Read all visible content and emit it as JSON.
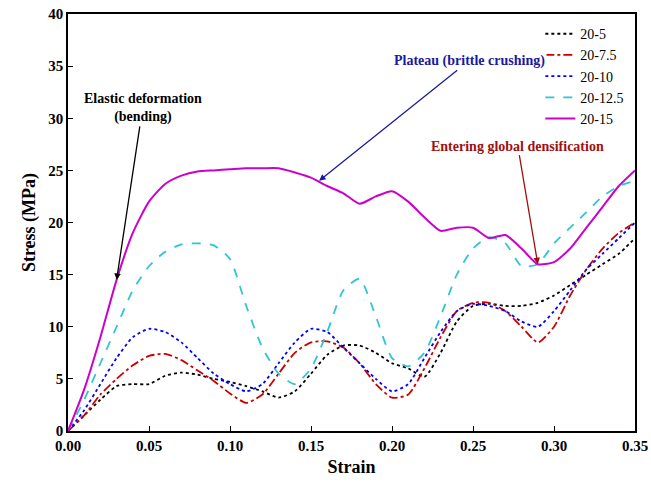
{
  "chart_data": {
    "type": "line",
    "xlabel": "Strain",
    "ylabel": "Stress (MPa)",
    "x": [
      0,
      0.01,
      0.02,
      0.03,
      0.04,
      0.05,
      0.06,
      0.07,
      0.08,
      0.09,
      0.1,
      0.11,
      0.12,
      0.13,
      0.14,
      0.15,
      0.16,
      0.17,
      0.18,
      0.19,
      0.2,
      0.21,
      0.22,
      0.23,
      0.24,
      0.25,
      0.26,
      0.27,
      0.28,
      0.29,
      0.3,
      0.31,
      0.32,
      0.33,
      0.34,
      0.35
    ],
    "series": [
      {
        "name": "20-5",
        "color": "#000000",
        "line_style": "dotted",
        "values": [
          0,
          1.5,
          3,
          4.3,
          4.5,
          4.5,
          5.3,
          5.6,
          5.4,
          5,
          4.7,
          4.3,
          3.8,
          3.2,
          3.8,
          5.5,
          7.3,
          8.2,
          8.2,
          7.5,
          6.5,
          6,
          5.2,
          7.5,
          10.5,
          12,
          12.2,
          12,
          12,
          12.3,
          13,
          14,
          15,
          16,
          17,
          18.5
        ]
      },
      {
        "name": "20-7.5",
        "color": "#cc0000",
        "line_style": "dashdot",
        "values": [
          0,
          1.5,
          3.5,
          5,
          6.3,
          7.2,
          7.4,
          6.8,
          5.8,
          4.8,
          3.6,
          2.7,
          3.5,
          5.5,
          7.5,
          8.5,
          8.6,
          8,
          6.5,
          4.5,
          3.2,
          3.5,
          6,
          9,
          11.5,
          12.3,
          12.3,
          11.5,
          10,
          8.5,
          10,
          13,
          15.5,
          17.5,
          19,
          20
        ]
      },
      {
        "name": "20-10",
        "color": "#0000ff",
        "line_style": "dotted",
        "values": [
          0,
          2,
          4.5,
          7,
          9,
          9.8,
          9.5,
          8.5,
          7,
          5.5,
          4.5,
          3.8,
          4.5,
          6.5,
          8.5,
          9.8,
          9.5,
          8,
          6.5,
          5,
          3.8,
          4.5,
          7,
          9.5,
          11.5,
          12.2,
          12,
          11.5,
          10.5,
          10,
          11.5,
          13.5,
          15.5,
          17,
          18.5,
          20
        ]
      },
      {
        "name": "20-12.5",
        "color": "#33c4d4",
        "line_style": "dashed",
        "values": [
          0,
          3,
          6.5,
          10,
          13.5,
          15.8,
          17.2,
          17.9,
          18,
          17.8,
          16.5,
          12,
          8,
          5.5,
          4.5,
          6,
          9.5,
          13.5,
          14.6,
          11,
          7,
          6.2,
          7.5,
          11,
          15,
          17.5,
          18.6,
          18,
          15.8,
          16,
          18,
          19.5,
          21,
          22.5,
          23.5,
          24
        ]
      },
      {
        "name": "20-15",
        "color": "#cc00cc",
        "line_style": "solid",
        "values": [
          0,
          4,
          9,
          14.5,
          19,
          22,
          23.7,
          24.5,
          24.9,
          25,
          25.1,
          25.2,
          25.2,
          25.2,
          24.8,
          24.3,
          23.5,
          22.8,
          21.8,
          22.5,
          23,
          22,
          20.5,
          19.2,
          19.5,
          19.5,
          18.5,
          18.8,
          17.5,
          16,
          16.2,
          17.5,
          19.5,
          21.5,
          23.5,
          25
        ]
      }
    ],
    "xlim": [
      0,
      0.35
    ],
    "ylim": [
      0,
      40
    ],
    "xticks": [
      {
        "value": 0,
        "label": "0.00"
      },
      {
        "value": 0.05,
        "label": "0.05"
      },
      {
        "value": 0.1,
        "label": "0.10"
      },
      {
        "value": 0.15,
        "label": "0.15"
      },
      {
        "value": 0.2,
        "label": "0.20"
      },
      {
        "value": 0.25,
        "label": "0.25"
      },
      {
        "value": 0.3,
        "label": "0.30"
      },
      {
        "value": 0.35,
        "label": "0.35"
      }
    ],
    "yticks": [
      0,
      5,
      10,
      15,
      20,
      25,
      30,
      35,
      40
    ],
    "grid": false,
    "legend": "top-right",
    "annotations": [
      {
        "text": "Elastic deformation (bending)",
        "x": 0.03,
        "y": 14.5,
        "color": "#000000"
      },
      {
        "text": "Plateau (brittle crushing)",
        "x": 0.155,
        "y": 24,
        "color": "#1a1aa0"
      },
      {
        "text": "Entering global densification",
        "x": 0.29,
        "y": 16,
        "color": "#a01010"
      }
    ]
  }
}
